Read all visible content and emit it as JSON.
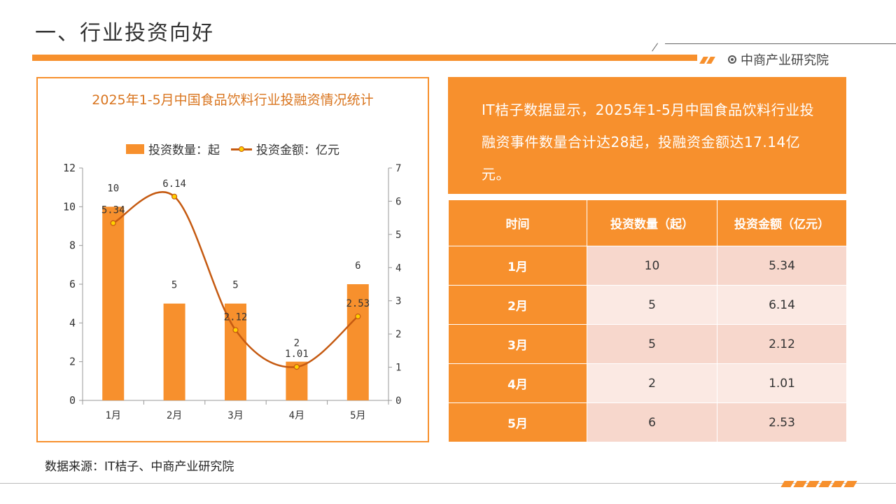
{
  "page": {
    "title": "一、行业投资向好",
    "brand": "中商产业研究院",
    "source": "数据来源：IT桔子、中商产业研究院"
  },
  "colors": {
    "accent": "#f7902d",
    "line": "#c55a11",
    "marker": "#ffd000"
  },
  "summary": "IT桔子数据显示，2025年1-5月中国食品饮料行业投融资事件数量合计达28起，投融资金额达17.14亿元。",
  "chart_data": {
    "type": "bar",
    "title": "2025年1-5月中国食品饮料行业投融资情况统计",
    "categories": [
      "1月",
      "2月",
      "3月",
      "4月",
      "5月"
    ],
    "series": [
      {
        "name": "投资数量：起",
        "type": "bar",
        "axis": "left",
        "values": [
          10,
          5,
          5,
          2,
          6
        ]
      },
      {
        "name": "投资金额：亿元",
        "type": "line",
        "axis": "right",
        "values": [
          5.34,
          6.14,
          2.12,
          1.01,
          2.53
        ]
      }
    ],
    "y_left": {
      "min": 0,
      "max": 12,
      "ticks": [
        0,
        2,
        4,
        6,
        8,
        10,
        12
      ]
    },
    "y_right": {
      "min": 0,
      "max": 7,
      "ticks": [
        0,
        1,
        2,
        3,
        4,
        5,
        6,
        7
      ]
    },
    "legend_position": "top",
    "grid": false
  },
  "table": {
    "headers": [
      "时间",
      "投资数量（起）",
      "投资金额（亿元）"
    ],
    "rows": [
      [
        "1月",
        "10",
        "5.34"
      ],
      [
        "2月",
        "5",
        "6.14"
      ],
      [
        "3月",
        "5",
        "2.12"
      ],
      [
        "4月",
        "2",
        "1.01"
      ],
      [
        "5月",
        "6",
        "2.53"
      ]
    ]
  }
}
